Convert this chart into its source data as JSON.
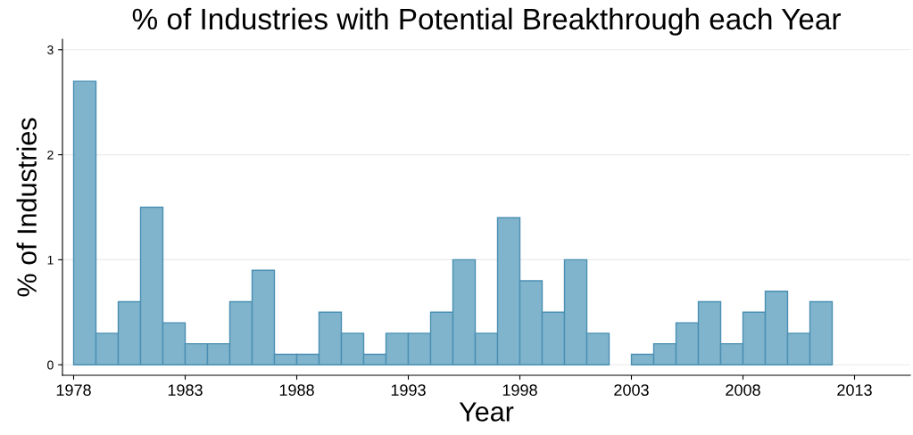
{
  "chart_data": {
    "type": "histogram",
    "title": "% of Industries with Potential Breakthrough each Year",
    "xlabel": "Year",
    "ylabel": "% of Industries",
    "bins": [
      1978,
      1979,
      1980,
      1981,
      1982,
      1983,
      1984,
      1985,
      1986,
      1987,
      1988,
      1989,
      1990,
      1991,
      1992,
      1993,
      1994,
      1995,
      1996,
      1997,
      1998,
      1999,
      2000,
      2001,
      2002,
      2003,
      2004,
      2005,
      2006,
      2007,
      2008,
      2009,
      2010,
      2011,
      2012
    ],
    "values": [
      2.7,
      0.3,
      0.6,
      1.5,
      0.4,
      0.2,
      0.2,
      0.6,
      0.9,
      0.1,
      0.1,
      0.5,
      0.3,
      0.1,
      0.3,
      0.3,
      0.5,
      1.0,
      0.3,
      1.4,
      0.8,
      0.5,
      1.0,
      0.3,
      null,
      0.1,
      0.2,
      0.4,
      0.6,
      0.2,
      0.5,
      0.7,
      0.3,
      0.6
    ],
    "color": "#80b4cc",
    "xlim": [
      1977.5,
      2015.5
    ],
    "xticks": [
      1978,
      1983,
      1988,
      1993,
      1998,
      2003,
      2008,
      2013
    ],
    "ylim": [
      -0.1,
      3.1
    ],
    "yticks": [
      0,
      1,
      2,
      3
    ],
    "grid": "y"
  }
}
